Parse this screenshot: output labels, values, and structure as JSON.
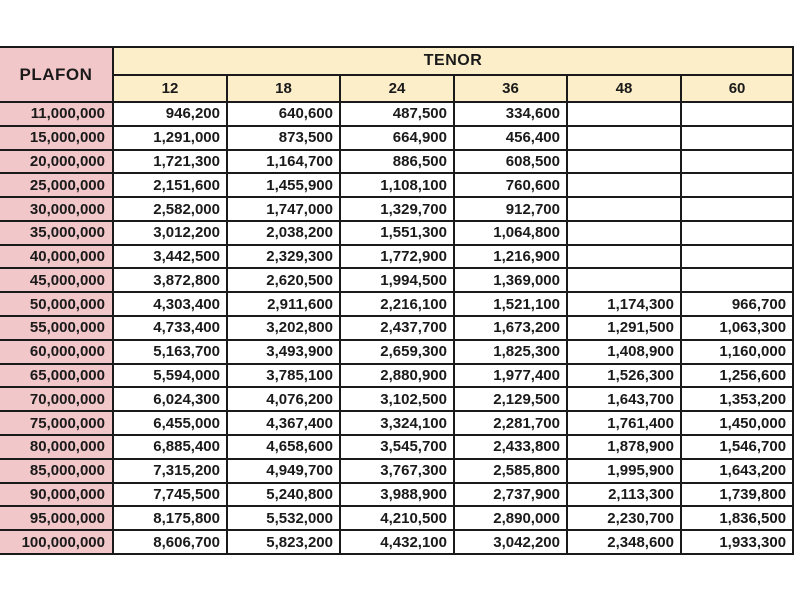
{
  "colors": {
    "plafon_bg": "#f2c7c9",
    "tenor_bg": "#fbeec8",
    "border": "#1a1a1a",
    "page_bg": "#ffffff"
  },
  "table": {
    "plafon_header": "PLAFON",
    "tenor_header": "TENOR",
    "tenor_columns": [
      "12",
      "18",
      "24",
      "36",
      "48",
      "60"
    ],
    "rows": [
      {
        "plafon": "11,000,000",
        "values": [
          "946,200",
          "640,600",
          "487,500",
          "334,600",
          "",
          ""
        ]
      },
      {
        "plafon": "15,000,000",
        "values": [
          "1,291,000",
          "873,500",
          "664,900",
          "456,400",
          "",
          ""
        ]
      },
      {
        "plafon": "20,000,000",
        "values": [
          "1,721,300",
          "1,164,700",
          "886,500",
          "608,500",
          "",
          ""
        ]
      },
      {
        "plafon": "25,000,000",
        "values": [
          "2,151,600",
          "1,455,900",
          "1,108,100",
          "760,600",
          "",
          ""
        ]
      },
      {
        "plafon": "30,000,000",
        "values": [
          "2,582,000",
          "1,747,000",
          "1,329,700",
          "912,700",
          "",
          ""
        ]
      },
      {
        "plafon": "35,000,000",
        "values": [
          "3,012,200",
          "2,038,200",
          "1,551,300",
          "1,064,800",
          "",
          ""
        ]
      },
      {
        "plafon": "40,000,000",
        "values": [
          "3,442,500",
          "2,329,300",
          "1,772,900",
          "1,216,900",
          "",
          ""
        ]
      },
      {
        "plafon": "45,000,000",
        "values": [
          "3,872,800",
          "2,620,500",
          "1,994,500",
          "1,369,000",
          "",
          ""
        ]
      },
      {
        "plafon": "50,000,000",
        "values": [
          "4,303,400",
          "2,911,600",
          "2,216,100",
          "1,521,100",
          "1,174,300",
          "966,700"
        ]
      },
      {
        "plafon": "55,000,000",
        "values": [
          "4,733,400",
          "3,202,800",
          "2,437,700",
          "1,673,200",
          "1,291,500",
          "1,063,300"
        ]
      },
      {
        "plafon": "60,000,000",
        "values": [
          "5,163,700",
          "3,493,900",
          "2,659,300",
          "1,825,300",
          "1,408,900",
          "1,160,000"
        ]
      },
      {
        "plafon": "65,000,000",
        "values": [
          "5,594,000",
          "3,785,100",
          "2,880,900",
          "1,977,400",
          "1,526,300",
          "1,256,600"
        ]
      },
      {
        "plafon": "70,000,000",
        "values": [
          "6,024,300",
          "4,076,200",
          "3,102,500",
          "2,129,500",
          "1,643,700",
          "1,353,200"
        ]
      },
      {
        "plafon": "75,000,000",
        "values": [
          "6,455,000",
          "4,367,400",
          "3,324,100",
          "2,281,700",
          "1,761,400",
          "1,450,000"
        ]
      },
      {
        "plafon": "80,000,000",
        "values": [
          "6,885,400",
          "4,658,600",
          "3,545,700",
          "2,433,800",
          "1,878,900",
          "1,546,700"
        ]
      },
      {
        "plafon": "85,000,000",
        "values": [
          "7,315,200",
          "4,949,700",
          "3,767,300",
          "2,585,800",
          "1,995,900",
          "1,643,200"
        ]
      },
      {
        "plafon": "90,000,000",
        "values": [
          "7,745,500",
          "5,240,800",
          "3,988,900",
          "2,737,900",
          "2,113,300",
          "1,739,800"
        ]
      },
      {
        "plafon": "95,000,000",
        "values": [
          "8,175,800",
          "5,532,000",
          "4,210,500",
          "2,890,000",
          "2,230,700",
          "1,836,500"
        ]
      },
      {
        "plafon": "100,000,000",
        "values": [
          "8,606,700",
          "5,823,200",
          "4,432,100",
          "3,042,200",
          "2,348,600",
          "1,933,300"
        ]
      }
    ]
  }
}
